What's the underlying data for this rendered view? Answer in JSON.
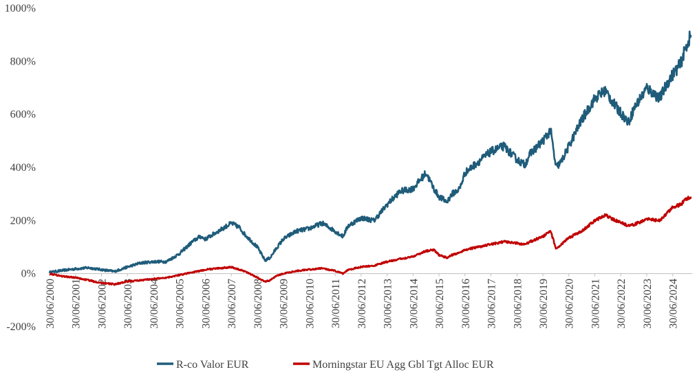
{
  "chart_data": {
    "type": "line",
    "title": "",
    "xlabel": "",
    "ylabel": "",
    "ylim": [
      -200,
      1000
    ],
    "y_ticks": [
      "-200%",
      "0%",
      "200%",
      "400%",
      "600%",
      "800%",
      "1000%"
    ],
    "y_tick_values": [
      -200,
      0,
      200,
      400,
      600,
      800,
      1000
    ],
    "x_ticks": [
      "30/06/2000",
      "30/06/2001",
      "30/06/2002",
      "30/06/2003",
      "30/06/2004",
      "30/06/2005",
      "30/06/2006",
      "30/06/2007",
      "30/06/2008",
      "30/06/2009",
      "30/06/2010",
      "30/06/2011",
      "30/06/2012",
      "30/06/2013",
      "30/06/2014",
      "30/06/2015",
      "30/06/2016",
      "30/06/2017",
      "30/06/2018",
      "30/06/2019",
      "30/06/2020",
      "30/06/2021",
      "30/06/2022",
      "30/06/2023",
      "30/06/2024"
    ],
    "x_range": [
      2000.5,
      2025.25
    ],
    "grid": false,
    "legend_position": "bottom",
    "x": [
      2000.5,
      2001.0,
      2001.5,
      2002.0,
      2002.5,
      2003.0,
      2003.5,
      2004.0,
      2004.5,
      2005.0,
      2005.5,
      2006.0,
      2006.3,
      2006.5,
      2007.0,
      2007.5,
      2007.8,
      2008.0,
      2008.5,
      2008.8,
      2009.0,
      2009.2,
      2009.5,
      2010.0,
      2010.5,
      2011.0,
      2011.5,
      2011.8,
      2012.0,
      2012.5,
      2013.0,
      2013.5,
      2014.0,
      2014.5,
      2015.0,
      2015.3,
      2015.5,
      2015.8,
      2016.0,
      2016.3,
      2016.5,
      2017.0,
      2017.5,
      2018.0,
      2018.5,
      2018.8,
      2019.0,
      2019.5,
      2019.8,
      2020.0,
      2020.2,
      2020.5,
      2021.0,
      2021.5,
      2021.9,
      2022.3,
      2022.8,
      2023.0,
      2023.5,
      2024.0,
      2024.3,
      2024.5,
      2024.8,
      2025.0,
      2025.2
    ],
    "series": [
      {
        "name": "R-co Valor EUR",
        "color": "#1f5c7a",
        "values": [
          5,
          12,
          18,
          22,
          15,
          8,
          25,
          40,
          45,
          45,
          75,
          120,
          140,
          130,
          160,
          190,
          175,
          150,
          100,
          50,
          60,
          90,
          130,
          160,
          170,
          190,
          160,
          140,
          180,
          210,
          200,
          260,
          310,
          320,
          380,
          320,
          290,
          270,
          300,
          320,
          380,
          420,
          460,
          480,
          430,
          410,
          450,
          500,
          540,
          400,
          420,
          480,
          580,
          660,
          690,
          630,
          570,
          620,
          700,
          660,
          720,
          750,
          790,
          850,
          900
        ]
      },
      {
        "name": "Morningstar EU Agg Gbl Tgt Alloc EUR",
        "color": "#c00000",
        "values": [
          0,
          -10,
          -15,
          -25,
          -35,
          -40,
          -30,
          -25,
          -20,
          -15,
          -5,
          5,
          10,
          15,
          20,
          25,
          15,
          10,
          -15,
          -30,
          -25,
          -10,
          0,
          10,
          15,
          20,
          10,
          0,
          15,
          25,
          30,
          45,
          55,
          65,
          85,
          90,
          70,
          60,
          70,
          80,
          90,
          100,
          110,
          120,
          115,
          110,
          120,
          140,
          160,
          95,
          110,
          135,
          160,
          200,
          220,
          200,
          180,
          185,
          205,
          200,
          230,
          250,
          260,
          280,
          290
        ]
      }
    ]
  }
}
